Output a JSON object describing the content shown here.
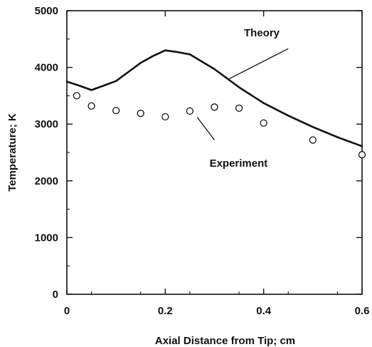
{
  "chart_data": {
    "type": "line",
    "title": "",
    "xlabel": "Axial Distance from Tip;  cm",
    "ylabel": "Temperature;  K",
    "xlim": [
      0,
      0.6
    ],
    "ylim": [
      0,
      5000
    ],
    "x_ticks": [
      0,
      0.2,
      0.4,
      0.6
    ],
    "x_tick_labels": [
      "0",
      "0.2",
      "0.4",
      "0.6"
    ],
    "y_ticks": [
      0,
      1000,
      2000,
      3000,
      4000,
      5000
    ],
    "y_tick_labels": [
      "0",
      "1000",
      "2000",
      "3000",
      "4000",
      "5000"
    ],
    "grid": false,
    "series": [
      {
        "name": "Theory",
        "style": "line",
        "x": [
          0,
          0.025,
          0.05,
          0.075,
          0.1,
          0.125,
          0.15,
          0.175,
          0.2,
          0.225,
          0.25,
          0.3,
          0.35,
          0.4,
          0.45,
          0.5,
          0.55,
          0.6
        ],
        "y": [
          3750,
          3680,
          3600,
          3680,
          3760,
          3920,
          4080,
          4200,
          4300,
          4270,
          4230,
          3970,
          3650,
          3370,
          3150,
          2950,
          2770,
          2610
        ]
      },
      {
        "name": "Experiment",
        "style": "markers",
        "x": [
          0.02,
          0.05,
          0.1,
          0.15,
          0.2,
          0.25,
          0.3,
          0.35,
          0.4,
          0.5,
          0.6
        ],
        "y": [
          3500,
          3320,
          3240,
          3190,
          3130,
          3230,
          3300,
          3280,
          3020,
          2720,
          2460
        ]
      }
    ],
    "annotations": [
      {
        "text": "Theory",
        "x": 0.36,
        "y": 4550,
        "arrow_from": [
          0.45,
          4330
        ],
        "arrow_to": [
          0.33,
          3800
        ]
      },
      {
        "text": "Experiment",
        "x": 0.29,
        "y": 2250,
        "arrow_from": [
          0.3,
          2720
        ],
        "arrow_to": [
          0.265,
          3120
        ]
      }
    ],
    "colors": {
      "line": "#111111",
      "marker": "#111111",
      "axes": "#111111"
    }
  }
}
